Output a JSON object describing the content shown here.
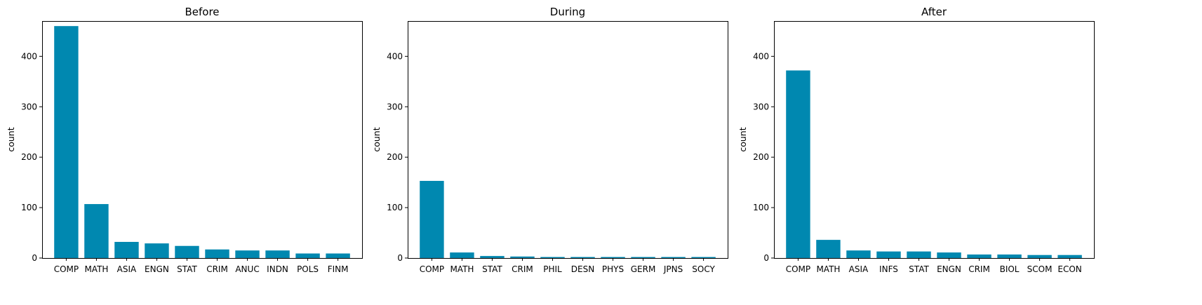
{
  "colors": {
    "bar": "#0088B0"
  },
  "chart_data": [
    {
      "type": "bar",
      "title": "Before",
      "xlabel": "",
      "ylabel": "count",
      "ylim": [
        0,
        470
      ],
      "yticks": [
        0,
        100,
        200,
        300,
        400
      ],
      "grid": false,
      "categories": [
        "COMP",
        "MATH",
        "ASIA",
        "ENGN",
        "STAT",
        "CRIM",
        "ANUC",
        "INDN",
        "POLS",
        "FINM"
      ],
      "values": [
        460,
        107,
        32,
        29,
        24,
        17,
        15,
        15,
        9,
        9
      ]
    },
    {
      "type": "bar",
      "title": "During",
      "xlabel": "",
      "ylabel": "count",
      "ylim": [
        0,
        470
      ],
      "yticks": [
        0,
        100,
        200,
        300,
        400
      ],
      "grid": false,
      "categories": [
        "COMP",
        "MATH",
        "STAT",
        "CRIM",
        "PHIL",
        "DESN",
        "PHYS",
        "GERM",
        "JPNS",
        "SOCY"
      ],
      "values": [
        153,
        11,
        4,
        3,
        2,
        2,
        2,
        2,
        2,
        2
      ]
    },
    {
      "type": "bar",
      "title": "After",
      "xlabel": "",
      "ylabel": "count",
      "ylim": [
        0,
        470
      ],
      "yticks": [
        0,
        100,
        200,
        300,
        400
      ],
      "grid": false,
      "categories": [
        "COMP",
        "MATH",
        "ASIA",
        "INFS",
        "STAT",
        "ENGN",
        "CRIM",
        "BIOL",
        "SCOM",
        "ECON"
      ],
      "values": [
        372,
        36,
        15,
        13,
        13,
        11,
        7,
        7,
        6,
        6
      ]
    }
  ]
}
